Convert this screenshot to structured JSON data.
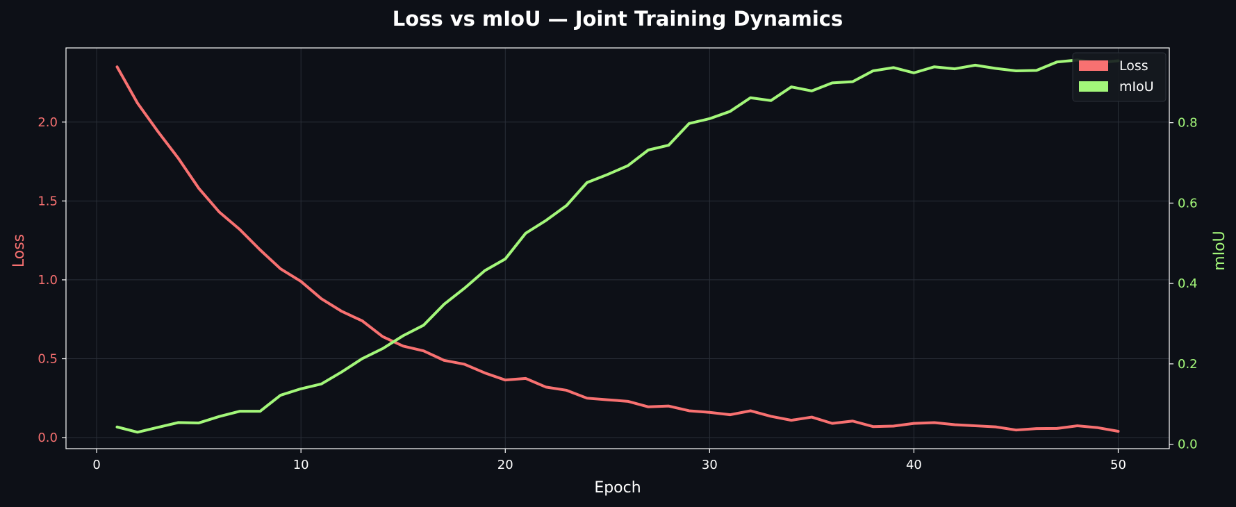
{
  "chart_data": {
    "type": "line",
    "title": "Loss vs mIoU — Joint Training Dynamics",
    "xlabel": "Epoch",
    "ylabel_left": "Loss",
    "ylabel_right": "mIoU",
    "xlim": [
      -1.5,
      52.5
    ],
    "ylim_left": [
      -0.07,
      2.47
    ],
    "ylim_right": [
      -0.011,
      0.986
    ],
    "xticks": [
      0,
      10,
      20,
      30,
      40,
      50
    ],
    "yticks_left": [
      0.0,
      0.5,
      1.0,
      1.5,
      2.0
    ],
    "yticks_right": [
      0.0,
      0.2,
      0.4,
      0.6,
      0.8
    ],
    "grid": true,
    "legend_position": "top-right",
    "x": [
      1,
      2,
      3,
      4,
      5,
      6,
      7,
      8,
      9,
      10,
      11,
      12,
      13,
      14,
      15,
      16,
      17,
      18,
      19,
      20,
      21,
      22,
      23,
      24,
      25,
      26,
      27,
      28,
      29,
      30,
      31,
      32,
      33,
      34,
      35,
      36,
      37,
      38,
      39,
      40,
      41,
      42,
      43,
      44,
      45,
      46,
      47,
      48,
      49,
      50
    ],
    "series": [
      {
        "name": "Loss",
        "axis": "left",
        "color": "#f87171",
        "values": [
          2.35,
          2.12,
          1.94,
          1.77,
          1.58,
          1.43,
          1.32,
          1.19,
          1.07,
          0.99,
          0.88,
          0.8,
          0.74,
          0.64,
          0.58,
          0.55,
          0.49,
          0.465,
          0.41,
          0.365,
          0.375,
          0.32,
          0.3,
          0.25,
          0.24,
          0.23,
          0.195,
          0.2,
          0.17,
          0.16,
          0.145,
          0.17,
          0.135,
          0.11,
          0.13,
          0.09,
          0.105,
          0.07,
          0.073,
          0.09,
          0.095,
          0.082,
          0.075,
          0.068,
          0.048,
          0.057,
          0.058,
          0.075,
          0.063,
          0.04
        ]
      },
      {
        "name": "mIoU",
        "axis": "right",
        "color": "#a3f77a",
        "values": [
          0.043,
          0.03,
          0.042,
          0.054,
          0.053,
          0.069,
          0.082,
          0.082,
          0.122,
          0.138,
          0.15,
          0.18,
          0.213,
          0.238,
          0.27,
          0.296,
          0.348,
          0.388,
          0.432,
          0.461,
          0.525,
          0.557,
          0.594,
          0.651,
          0.671,
          0.693,
          0.732,
          0.744,
          0.798,
          0.81,
          0.828,
          0.862,
          0.855,
          0.889,
          0.879,
          0.899,
          0.902,
          0.929,
          0.937,
          0.924,
          0.939,
          0.934,
          0.943,
          0.935,
          0.929,
          0.93,
          0.951,
          0.956,
          0.949,
          0.954
        ]
      }
    ]
  },
  "colors": {
    "background": "#0d1017",
    "text": "#ffffff",
    "grid": "#2a2f38",
    "frame": "#ffffff"
  }
}
